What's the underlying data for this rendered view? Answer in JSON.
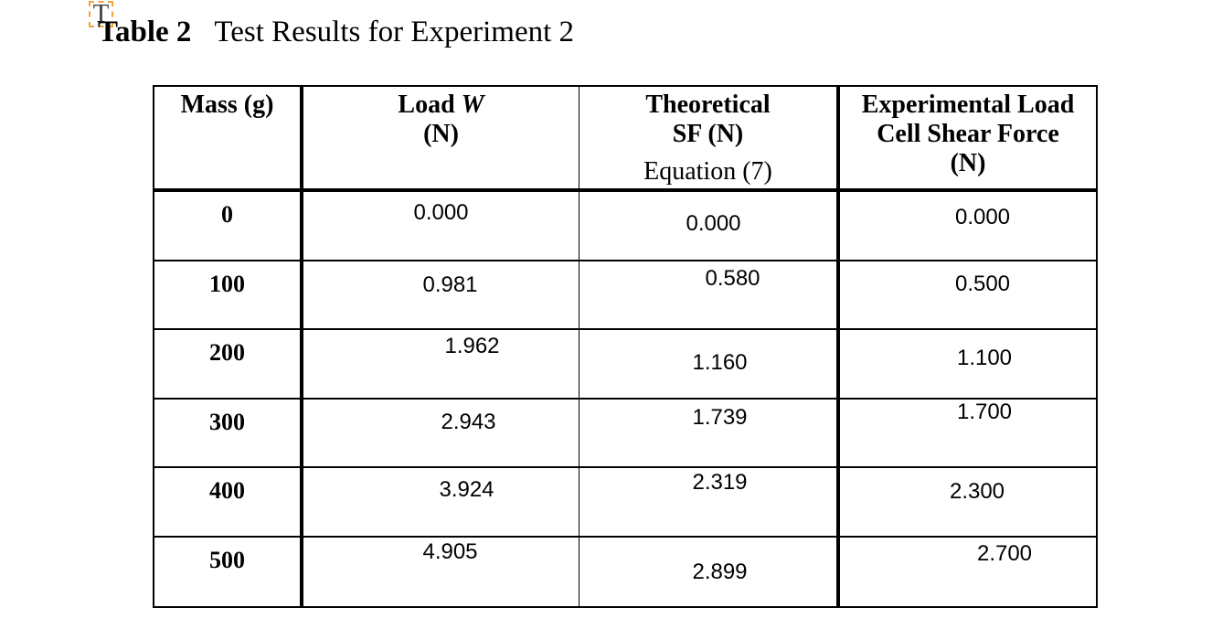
{
  "annotation": {
    "glyph": "T"
  },
  "caption": {
    "label": "Table 2",
    "text": "Test Results for Experiment 2"
  },
  "colors": {
    "annotation_orange": "#F2A33C",
    "table_border": "#000000",
    "text": "#000000"
  },
  "table": {
    "columns": [
      {
        "name": "mass",
        "lines": [
          {
            "parts": [
              {
                "t": "Mass (g)"
              }
            ]
          }
        ]
      },
      {
        "name": "load-w",
        "lines": [
          {
            "parts": [
              {
                "t": "Load "
              },
              {
                "t": "W",
                "i": true
              }
            ]
          },
          {
            "parts": [
              {
                "t": "(N)"
              }
            ]
          }
        ]
      },
      {
        "name": "theoretical-sf",
        "lines": [
          {
            "parts": [
              {
                "t": "Theoretical"
              }
            ]
          },
          {
            "parts": [
              {
                "t": "SF (N)"
              }
            ]
          },
          {
            "parts": [
              {
                "t": "Equation (7)"
              }
            ],
            "plain": true,
            "gap": true
          }
        ]
      },
      {
        "name": "experimental-shear",
        "lines": [
          {
            "parts": [
              {
                "t": "Experimental Load"
              }
            ]
          },
          {
            "parts": [
              {
                "t": "Cell Shear Force"
              }
            ]
          },
          {
            "parts": [
              {
                "t": "(N)"
              }
            ]
          }
        ]
      }
    ],
    "rows": [
      [
        "0",
        "0.000",
        "0.000",
        "0.000"
      ],
      [
        "100",
        "0.981",
        "0.580",
        "0.500"
      ],
      [
        "200",
        "1.962",
        "1.160",
        "1.100"
      ],
      [
        "300",
        "2.943",
        "1.739",
        "1.700"
      ],
      [
        "400",
        "3.924",
        "2.319",
        "2.300"
      ],
      [
        "500",
        "4.905",
        "2.899",
        "2.700"
      ]
    ]
  }
}
